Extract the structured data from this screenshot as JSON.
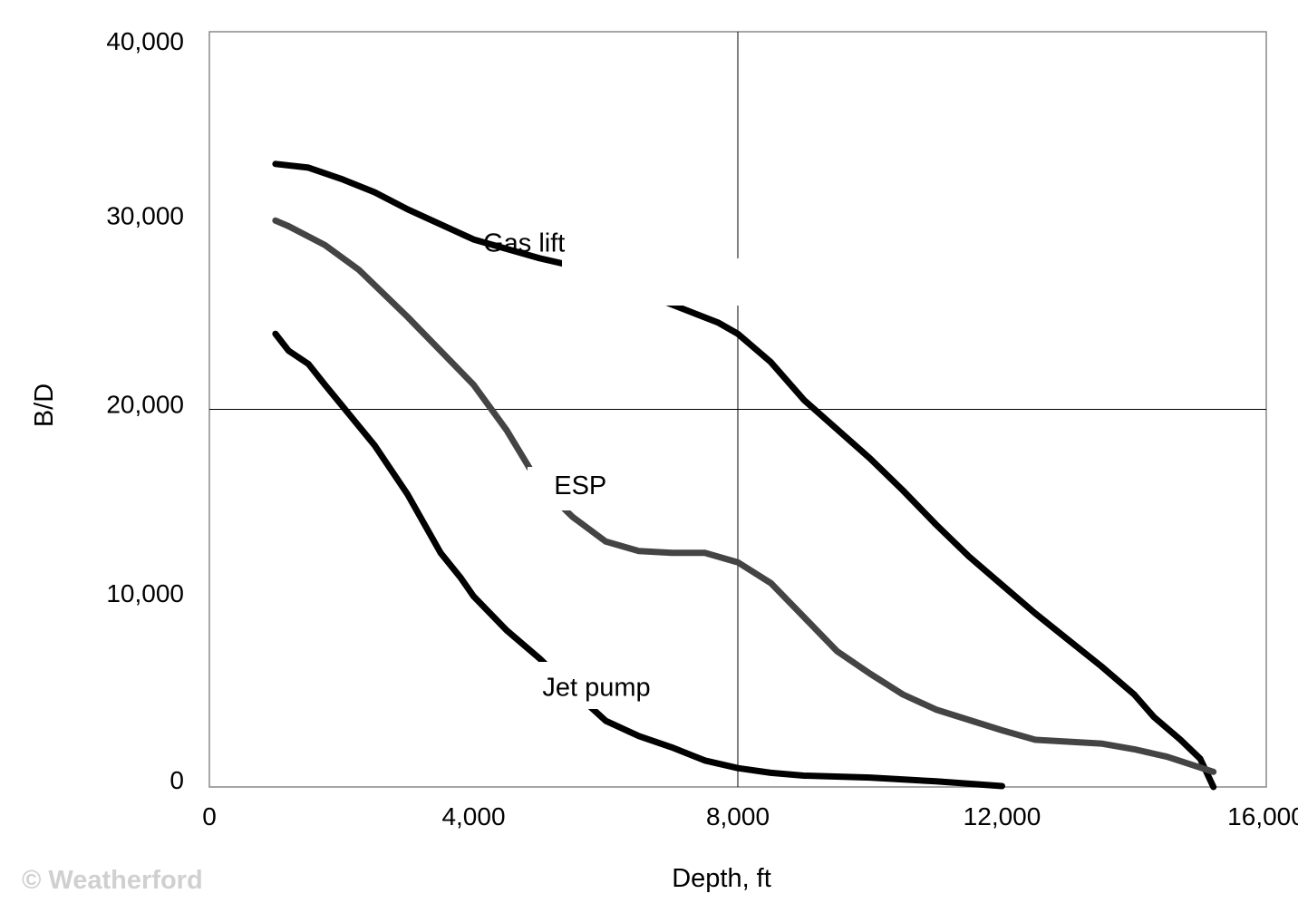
{
  "chart_data": {
    "type": "line",
    "title": "",
    "xlabel": "Depth, ft",
    "ylabel": "B/D",
    "xlim": [
      0,
      16000
    ],
    "ylim": [
      0,
      40000
    ],
    "xticks": [
      0,
      4000,
      8000,
      12000,
      16000
    ],
    "yticks": [
      0,
      10000,
      20000,
      30000,
      40000
    ],
    "xtick_labels": [
      "0",
      "4,000",
      "8,000",
      "12,000",
      "16,000"
    ],
    "ytick_labels": [
      "0",
      "10,000",
      "20,000",
      "30,000",
      "40,000"
    ],
    "grid": "single lines at x=8,000 and y=20,000",
    "legend": "none (inline labels)",
    "series": [
      {
        "name": "Gas lift",
        "color": "#000000",
        "x": [
          1000,
          1500,
          2000,
          2500,
          3000,
          4000,
          5000,
          5500,
          7700,
          8000,
          8500,
          9000,
          10000,
          10500,
          11000,
          11500,
          12000,
          12500,
          13000,
          13500,
          14000,
          14300,
          14700,
          15000,
          15200
        ],
        "y": [
          33000,
          32800,
          32200,
          31500,
          30600,
          29000,
          28000,
          27600,
          24600,
          24000,
          22500,
          20500,
          17400,
          15700,
          13900,
          12200,
          10700,
          9200,
          7800,
          6400,
          4900,
          3700,
          2500,
          1500,
          0
        ]
      },
      {
        "name": "ESP",
        "color": "#444444",
        "x": [
          1000,
          1200,
          1750,
          2260,
          3000,
          4000,
          4500,
          5000,
          5500,
          6000,
          6500,
          7000,
          7500,
          8000,
          8500,
          9000,
          9500,
          10000,
          10500,
          11000,
          12000,
          12500,
          13500,
          14000,
          14500,
          15200
        ],
        "y": [
          30000,
          29700,
          28700,
          27400,
          24900,
          21300,
          18900,
          16000,
          14300,
          13000,
          12500,
          12400,
          12400,
          11900,
          10800,
          9000,
          7200,
          6000,
          4900,
          4100,
          3000,
          2500,
          2300,
          2000,
          1600,
          800
        ]
      },
      {
        "name": "Jet pump",
        "color": "#000000",
        "x": [
          1000,
          1200,
          1500,
          1750,
          2500,
          3000,
          3500,
          3800,
          4000,
          4500,
          5000,
          5500,
          6000,
          6500,
          7000,
          7500,
          8000,
          8500,
          9000,
          10000,
          11000,
          12000
        ],
        "y": [
          24000,
          23100,
          22400,
          21300,
          18100,
          15500,
          12400,
          11100,
          10100,
          8300,
          6800,
          5100,
          3500,
          2700,
          2100,
          1400,
          1000,
          750,
          600,
          500,
          300,
          50
        ]
      }
    ],
    "annotations": [
      {
        "text": "Gas lift",
        "x": 6300,
        "y": 27500
      },
      {
        "text": "ESP",
        "x": 5300,
        "y": 16000
      },
      {
        "text": "Jet pump",
        "x": 5700,
        "y": 5300
      }
    ]
  },
  "watermark": "© Weatherford"
}
